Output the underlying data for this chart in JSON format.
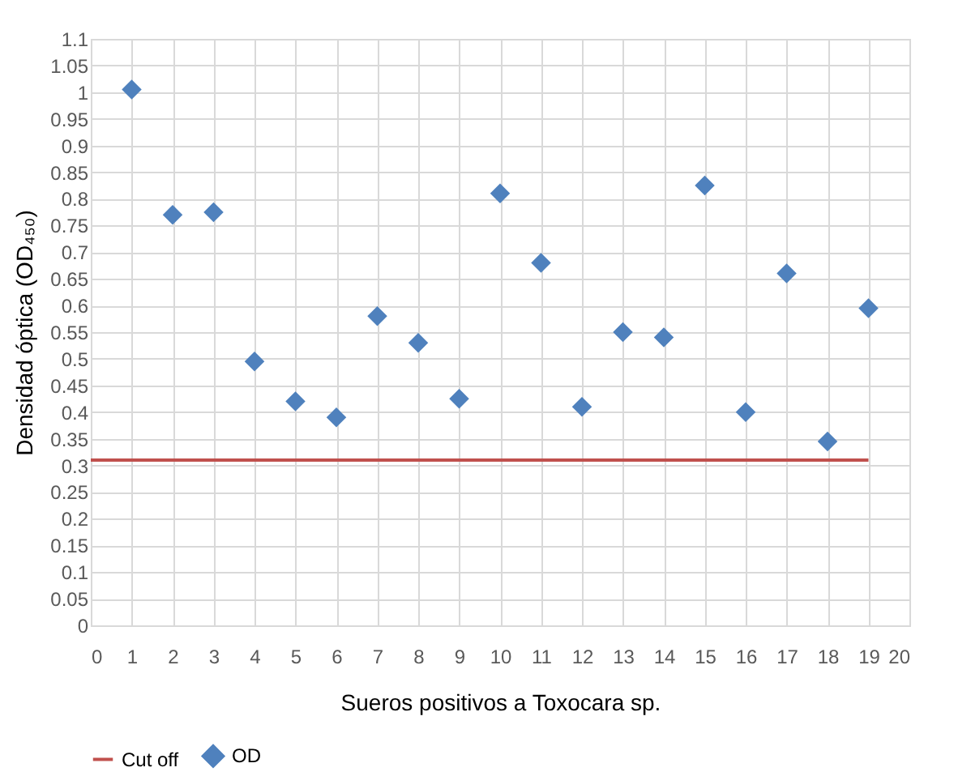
{
  "chart_data": {
    "type": "scatter",
    "xlabel": "Sueros positivos a Toxocara sp.",
    "ylabel": "Densidad óptica (OD₄₅₀)",
    "xlim": [
      0,
      20
    ],
    "xticks": [
      0,
      1,
      2,
      3,
      4,
      5,
      6,
      7,
      8,
      9,
      10,
      11,
      12,
      13,
      14,
      15,
      16,
      17,
      18,
      19,
      20
    ],
    "ylim": [
      0,
      1.1
    ],
    "yticks": [
      0,
      0.05,
      0.1,
      0.15,
      0.2,
      0.25,
      0.3,
      0.35,
      0.4,
      0.45,
      0.5,
      0.55,
      0.6,
      0.65,
      0.7,
      0.75,
      0.8,
      0.85,
      0.9,
      0.95,
      1,
      1.05,
      1.1
    ],
    "grid": true,
    "legend": "bottom",
    "series": [
      {
        "name": "Cut off",
        "type": "line",
        "color": "#c0504d",
        "x": [
          0,
          19
        ],
        "values": [
          0.31,
          0.31
        ]
      },
      {
        "name": "OD",
        "marker": "diamond",
        "color": "#4f81bd",
        "x": [
          1,
          2,
          3,
          4,
          5,
          6,
          7,
          8,
          9,
          10,
          11,
          12,
          13,
          14,
          15,
          16,
          17,
          18,
          19
        ],
        "values": [
          1.005,
          0.77,
          0.775,
          0.495,
          0.42,
          0.39,
          0.58,
          0.53,
          0.425,
          0.81,
          0.68,
          0.41,
          0.55,
          0.54,
          0.825,
          0.4,
          0.66,
          0.345,
          0.595
        ]
      }
    ]
  }
}
